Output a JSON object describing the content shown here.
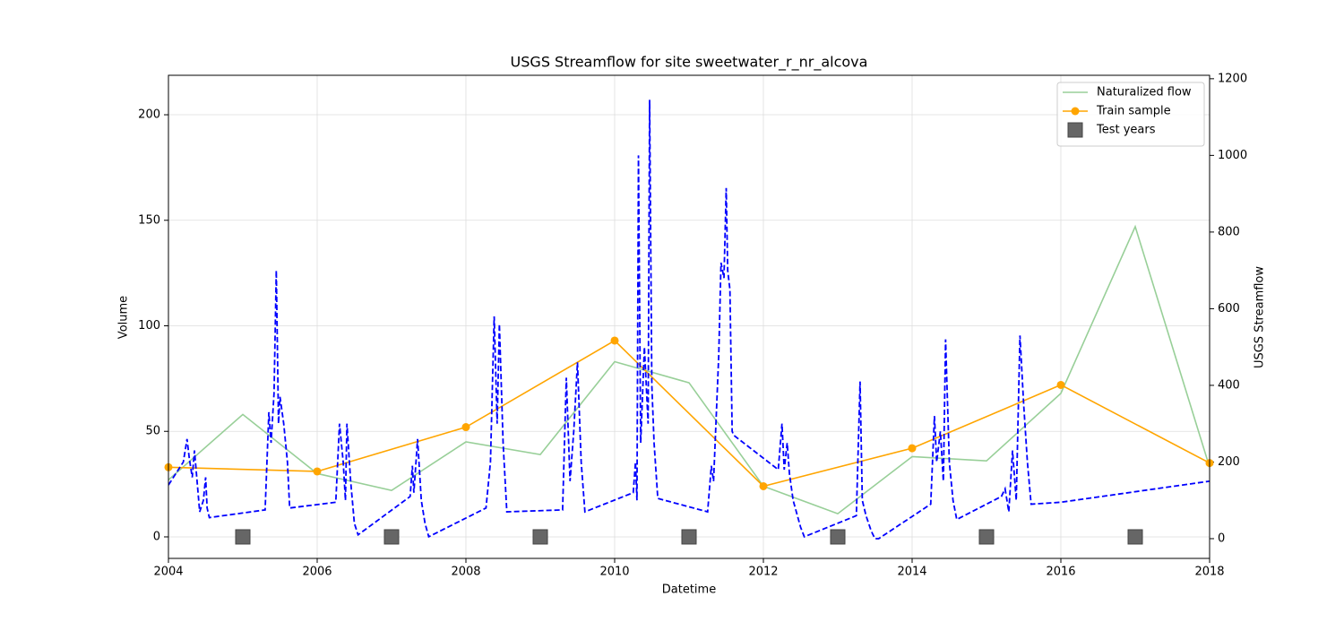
{
  "chart_data": {
    "type": "line",
    "title": "USGS Streamflow for site sweetwater_r_nr_alcova",
    "xlabel": "Datetime",
    "ylabel": "Volume",
    "y2label": "USGS Streamflow",
    "xlim": [
      2004,
      2018
    ],
    "xticks": [
      2004,
      2006,
      2008,
      2010,
      2012,
      2014,
      2016,
      2018
    ],
    "ylim": [
      -10.2,
      218.7
    ],
    "yticks": [
      0,
      50,
      100,
      150,
      200
    ],
    "y2lim": [
      -51.5,
      1209
    ],
    "y2ticks": [
      0,
      200,
      400,
      600,
      800,
      1000,
      1200
    ],
    "grid": true,
    "legend": "upper right",
    "series": [
      {
        "name": "Naturalized flow",
        "color": "#98cf98",
        "marker": null,
        "linestyle": "solid",
        "x": [
          2004,
          2005,
          2006,
          2007,
          2008,
          2009,
          2010,
          2011,
          2012,
          2013,
          2014,
          2015,
          2016,
          2017,
          2018
        ],
        "values": [
          27,
          58,
          30,
          22,
          45,
          39,
          83,
          73,
          24,
          11,
          38,
          36,
          68,
          147,
          33
        ]
      },
      {
        "name": "Train sample",
        "color": "#ffa500",
        "marker": "circle",
        "linestyle": "solid",
        "x": [
          2004,
          2006,
          2008,
          2010,
          2012,
          2014,
          2016,
          2018
        ],
        "values": [
          33,
          31,
          52,
          93,
          24,
          42,
          72,
          35
        ]
      },
      {
        "name": "Test years",
        "color": "#666666",
        "marker": "square",
        "linestyle": "none",
        "x": [
          2005,
          2007,
          2009,
          2011,
          2013,
          2015,
          2017
        ],
        "values": [
          0,
          0,
          0,
          0,
          0,
          0,
          0
        ]
      },
      {
        "color": "#0000ff",
        "marker": null,
        "linestyle": "dashed",
        "axis": "y2",
        "x": [
          2004.0,
          2004.2,
          2004.25,
          2004.28,
          2004.32,
          2004.35,
          2004.42,
          2004.47,
          2004.5,
          2004.52,
          2004.55,
          2005.3,
          2005.35,
          2005.38,
          2005.42,
          2005.45,
          2005.48,
          2005.5,
          2005.55,
          2005.6,
          2005.63,
          2006.25,
          2006.3,
          2006.35,
          2006.38,
          2006.4,
          2006.45,
          2006.5,
          2006.55,
          2007.25,
          2007.28,
          2007.3,
          2007.35,
          2007.4,
          2007.45,
          2007.5,
          2008.27,
          2008.33,
          2008.38,
          2008.42,
          2008.45,
          2008.5,
          2008.55,
          2009.3,
          2009.35,
          2009.4,
          2009.45,
          2009.5,
          2009.55,
          2009.6,
          2010.25,
          2010.28,
          2010.3,
          2010.32,
          2010.35,
          2010.4,
          2010.45,
          2010.47,
          2010.5,
          2010.53,
          2010.58,
          2011.25,
          2011.3,
          2011.33,
          2011.4,
          2011.43,
          2011.47,
          2011.5,
          2011.52,
          2011.55,
          2011.58,
          2011.6,
          2012.2,
          2012.25,
          2012.28,
          2012.32,
          2012.35,
          2012.4,
          2012.5,
          2012.55,
          2013.25,
          2013.3,
          2013.33,
          2013.38,
          2013.45,
          2013.5,
          2013.55,
          2014.25,
          2014.3,
          2014.33,
          2014.38,
          2014.42,
          2014.45,
          2014.5,
          2014.55,
          2014.6,
          2015.2,
          2015.25,
          2015.3,
          2015.35,
          2015.4,
          2015.45,
          2015.5,
          2015.55,
          2015.6,
          2016.0,
          2018.0
        ],
        "values": [
          140,
          200,
          260,
          210,
          160,
          230,
          70,
          100,
          160,
          80,
          55,
          75,
          330,
          250,
          380,
          700,
          300,
          370,
          300,
          200,
          80,
          95,
          300,
          200,
          100,
          300,
          150,
          40,
          10,
          110,
          190,
          120,
          260,
          100,
          40,
          5,
          80,
          200,
          580,
          300,
          560,
          250,
          70,
          75,
          420,
          150,
          280,
          460,
          200,
          70,
          120,
          200,
          100,
          1000,
          250,
          500,
          300,
          1145,
          400,
          250,
          105,
          70,
          190,
          150,
          480,
          720,
          680,
          915,
          700,
          650,
          280,
          270,
          180,
          300,
          180,
          250,
          170,
          100,
          30,
          5,
          60,
          410,
          100,
          60,
          20,
          0,
          0,
          90,
          320,
          200,
          280,
          150,
          520,
          200,
          100,
          50,
          110,
          130,
          70,
          230,
          100,
          530,
          350,
          200,
          90,
          95,
          150
        ]
      }
    ]
  }
}
